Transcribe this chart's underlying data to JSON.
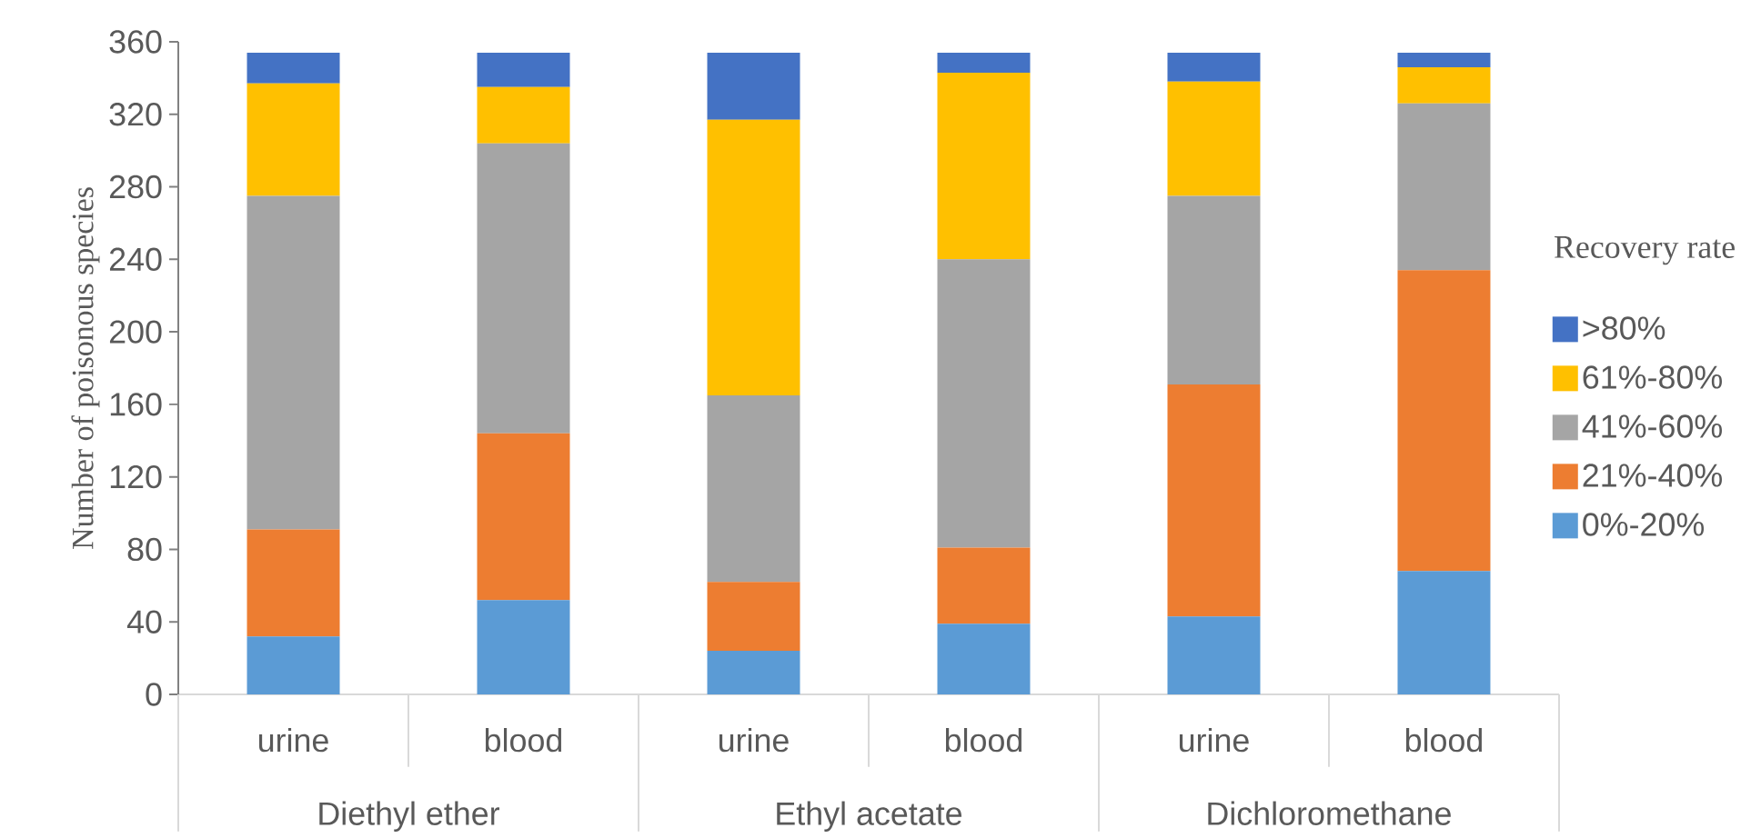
{
  "chart_data": {
    "type": "bar",
    "stacked": true,
    "ylabel": "Number of poisonous species",
    "legend_title": "Recovery rate",
    "legend": "right",
    "categories": [
      "urine",
      "blood",
      "urine",
      "blood",
      "urine",
      "blood"
    ],
    "annotations": [
      "Diethyl ether",
      "Ethyl acetate",
      "Dichloromethane"
    ],
    "ylim": [
      0,
      360
    ],
    "yticks": [
      0,
      40,
      80,
      120,
      160,
      200,
      240,
      280,
      320,
      360
    ],
    "series": [
      {
        "name": "0%-20%",
        "color": "#5b9bd5",
        "values": [
          32,
          52,
          24,
          39,
          43,
          68
        ]
      },
      {
        "name": "21%-40%",
        "color": "#ed7d31",
        "values": [
          59,
          92,
          38,
          42,
          128,
          166
        ]
      },
      {
        "name": "41%-60%",
        "color": "#a5a5a5",
        "values": [
          184,
          160,
          103,
          159,
          104,
          92
        ]
      },
      {
        "name": "61%-80%",
        "color": "#ffc000",
        "values": [
          62,
          31,
          152,
          103,
          63,
          20
        ]
      },
      {
        "name": ">80%",
        "color": "#4472c4",
        "values": [
          17,
          19,
          37,
          11,
          16,
          8
        ]
      }
    ]
  }
}
